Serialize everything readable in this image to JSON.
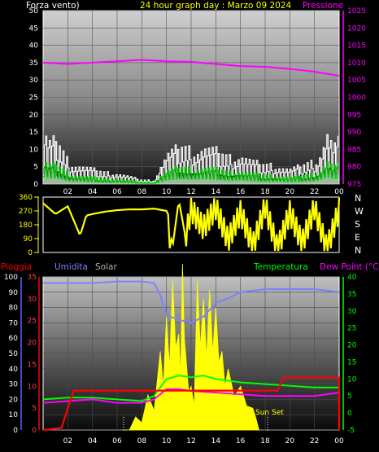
{
  "colors": {
    "background": "#000000",
    "wind_label": "#ffffff",
    "title": "#ffff00",
    "pressure": "#ff00ff",
    "wind_speed": "#ffffff",
    "wind_gust": "#00cc00",
    "wind_avg_fill": "#c8f0c8",
    "direction": "#ffff00",
    "rain": "#ff0000",
    "humidity": "#8080ff",
    "solar": "#ffff00",
    "temperature": "#00ff00",
    "dewpoint": "#ff00ff",
    "solar_label": "#b0b0a0"
  },
  "header": {
    "wind_label": "Forza vento)",
    "title": "24 hour graph day : Marzo 09 2024",
    "pressure_label": "Pressione"
  },
  "lower_header": {
    "rain_label": "Pioggia",
    "humidity_label": "Umidita",
    "solar_label": "Solar",
    "temperature_label": "Temperatura",
    "dewpoint_label": "Dew Point (°C)"
  },
  "sun_set_label": "Sun Set",
  "x_ticks": [
    "02",
    "04",
    "06",
    "08",
    "10",
    "12",
    "14",
    "16",
    "18",
    "20",
    "22",
    "00"
  ],
  "compass": [
    "N",
    "W",
    "S",
    "E",
    "N"
  ],
  "chart_data": [
    {
      "type": "line",
      "title": "24 hour graph day : Marzo 09 2024",
      "x_hours_ticks": [
        "02",
        "04",
        "06",
        "08",
        "10",
        "12",
        "14",
        "16",
        "18",
        "20",
        "22",
        "00"
      ],
      "y_left_ticks": [
        "0",
        "5",
        "10",
        "15",
        "20",
        "25",
        "30",
        "35",
        "40",
        "45",
        "50"
      ],
      "y_left_range": [
        0,
        50
      ],
      "y_right_ticks": [
        "975",
        "980",
        "985",
        "990",
        "995",
        "1000",
        "1005",
        "1010",
        "1015",
        "1020",
        "1025"
      ],
      "y_right_range": [
        975,
        1025
      ],
      "series": [
        {
          "name": "Forza vento)",
          "x": [
            0,
            0.5,
            1,
            1.5,
            2,
            3,
            4,
            5,
            6,
            7,
            8,
            9,
            9.5,
            10,
            11,
            12,
            13,
            14,
            15,
            16,
            17,
            18,
            19,
            20,
            21,
            22,
            22.5,
            23,
            23.5,
            24
          ],
          "values": [
            14,
            11,
            12,
            9,
            6,
            5,
            4,
            3,
            3,
            2,
            1,
            1,
            5,
            8,
            10,
            9,
            10,
            9,
            7,
            8,
            6,
            5,
            5,
            4,
            5,
            6,
            9,
            14,
            10,
            12
          ]
        },
        {
          "name": "Pressione",
          "x": [
            0,
            2,
            4,
            6,
            8,
            10,
            12,
            14,
            16,
            18,
            20,
            22,
            24
          ],
          "values": [
            1010,
            1009.6,
            1010,
            1010.4,
            1010.8,
            1010.4,
            1010.2,
            1009.6,
            1009,
            1008.8,
            1008.2,
            1007.4,
            1006.2
          ]
        }
      ]
    },
    {
      "type": "line",
      "y_ticks": [
        "0",
        "90",
        "180",
        "270",
        "360"
      ],
      "y_range": [
        0,
        360
      ],
      "series": [
        {
          "name": "direction",
          "x": [
            0,
            1,
            2,
            3,
            3.5,
            4,
            5,
            6,
            7,
            8,
            9,
            10,
            10.5,
            11,
            11.5,
            12,
            13,
            14,
            15,
            16,
            17,
            18,
            19,
            20,
            21,
            22,
            23,
            24
          ],
          "values": [
            320,
            250,
            300,
            110,
            240,
            250,
            265,
            275,
            280,
            280,
            285,
            270,
            40,
            340,
            120,
            320,
            200,
            330,
            120,
            300,
            80,
            340,
            60,
            300,
            100,
            330,
            60,
            320
          ]
        }
      ]
    },
    {
      "type": "line",
      "y_left_ticks": [
        "0",
        "10",
        "20",
        "30",
        "40",
        "50",
        "60",
        "70",
        "80",
        "90",
        "100"
      ],
      "y_left_range": [
        0,
        100
      ],
      "y_mid_ticks": [
        "0",
        "5",
        "10",
        "15",
        "20",
        "25",
        "30",
        "35"
      ],
      "y_mid_range": [
        0,
        35
      ],
      "y_right_ticks": [
        "-5",
        "0",
        "5",
        "10",
        "15",
        "20",
        "25",
        "30",
        "35",
        "40"
      ],
      "y_right_range": [
        -5,
        40
      ],
      "series": [
        {
          "name": "Umidita",
          "x": [
            0,
            2,
            4,
            6,
            8,
            9,
            9.5,
            10,
            11,
            12,
            13,
            14,
            15,
            16,
            18,
            20,
            22,
            24
          ],
          "values": [
            96,
            96,
            96,
            97,
            97,
            96,
            88,
            75,
            72,
            70,
            74,
            83,
            86,
            90,
            92,
            92,
            92,
            90
          ]
        },
        {
          "name": "Temperatura",
          "x": [
            0,
            2,
            4,
            6,
            8,
            9,
            10,
            11,
            12,
            13,
            14,
            16,
            18,
            20,
            22,
            24
          ],
          "values": [
            4,
            4.5,
            4.5,
            4,
            3.5,
            5,
            10,
            11,
            10.5,
            11,
            10,
            9,
            8.5,
            8,
            7.5,
            7.5
          ]
        },
        {
          "name": "Dew Point (°C)",
          "x": [
            0,
            2,
            4,
            6,
            8,
            9,
            10,
            11,
            12,
            14,
            16,
            18,
            20,
            22,
            24
          ],
          "values": [
            3,
            3.5,
            4,
            3,
            3,
            4,
            7,
            7,
            6.5,
            6,
            5.5,
            5,
            5,
            5,
            6
          ]
        },
        {
          "name": "Pioggia",
          "x": [
            0,
            1.5,
            2,
            2.5,
            19,
            19.5,
            24
          ],
          "values": [
            0,
            0.5,
            5,
            9,
            9,
            12,
            12
          ]
        },
        {
          "name": "Solar",
          "x": [
            6.5,
            7.5,
            8.5,
            9.5,
            10,
            10.5,
            11,
            11.3,
            11.6,
            12,
            12.5,
            13,
            13.5,
            14,
            14.5,
            15,
            16,
            17,
            17.5
          ],
          "values": [
            0,
            3,
            8,
            18,
            26,
            34,
            22,
            38,
            16,
            10,
            34,
            30,
            32,
            28,
            18,
            14,
            10,
            5,
            0
          ]
        }
      ]
    }
  ]
}
